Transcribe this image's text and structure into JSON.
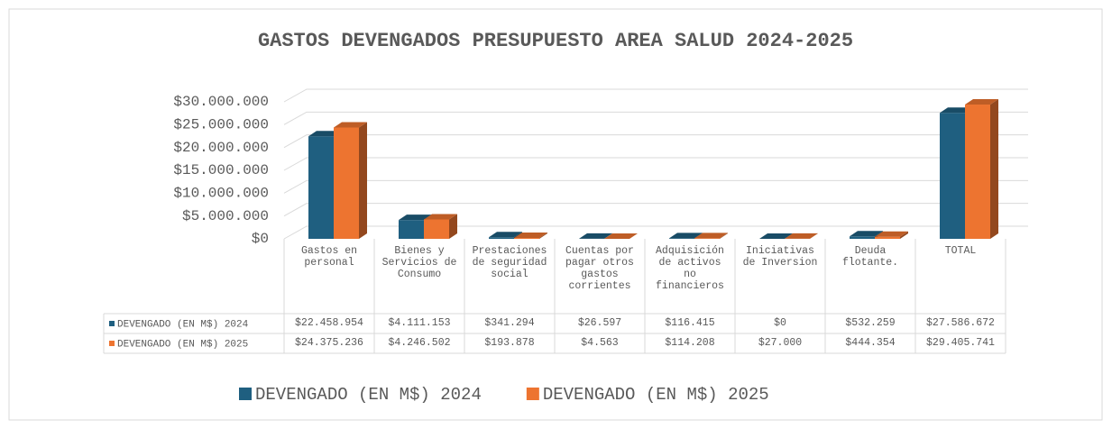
{
  "chart_data": {
    "type": "bar3d",
    "title": "GASTOS DEVENGADOS PRESUPUESTO AREA SALUD 2024-2025",
    "categories": [
      "Gastos en personal",
      "Bienes y Servicios de Consumo",
      "Prestaciones de seguridad social",
      "Cuentas por pagar otros gastos corrientes",
      "Adquisición de activos no financieros",
      "Iniciativas de Inversion",
      "Deuda flotante.",
      "TOTAL"
    ],
    "series": [
      {
        "name": "DEVENGADO (EN M$) 2024",
        "color": "#1f5f80",
        "values": [
          22458954,
          4111153,
          341294,
          26597,
          116415,
          0,
          532259,
          27586672
        ],
        "value_labels": [
          "$22.458.954",
          "$4.111.153",
          "$341.294",
          "$26.597",
          "$116.415",
          "$0",
          "$532.259",
          "$27.586.672"
        ]
      },
      {
        "name": "DEVENGADO (EN M$) 2025",
        "color": "#ed7430",
        "values": [
          24375236,
          4246502,
          193878,
          4563,
          114208,
          27000,
          444354,
          29405741
        ],
        "value_labels": [
          "$24.375.236",
          "$4.246.502",
          "$193.878",
          "$4.563",
          "$114.208",
          "$27.000",
          "$444.354",
          "$29.405.741"
        ]
      }
    ],
    "ylim": [
      0,
      30000000
    ],
    "yticks": [
      {
        "value": 0,
        "label": "$0"
      },
      {
        "value": 5000000,
        "label": "$5.000.000"
      },
      {
        "value": 10000000,
        "label": "$10.000.000"
      },
      {
        "value": 15000000,
        "label": "$15.000.000"
      },
      {
        "value": 20000000,
        "label": "$20.000.000"
      },
      {
        "value": 25000000,
        "label": "$25.000.000"
      },
      {
        "value": 30000000,
        "label": "$30.000.000"
      }
    ],
    "grid": true,
    "legend": "bottom"
  }
}
